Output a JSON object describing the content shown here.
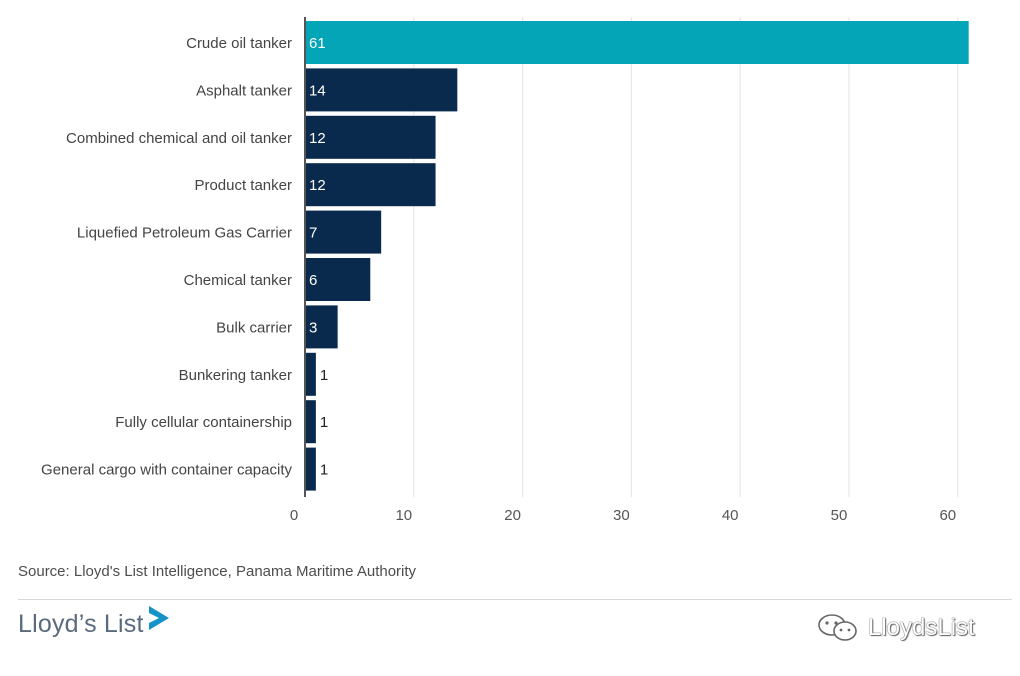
{
  "chart_data": {
    "type": "bar",
    "orientation": "horizontal",
    "categories": [
      "Crude oil tanker",
      "Asphalt tanker",
      "Combined chemical and oil tanker",
      "Product tanker",
      "Liquefied Petroleum Gas Carrier",
      "Chemical tanker",
      "Bulk carrier",
      "Bunkering tanker",
      "Fully cellular containership",
      "General cargo with container capacity"
    ],
    "values": [
      61,
      14,
      12,
      12,
      7,
      6,
      3,
      1,
      1,
      1
    ],
    "highlight_index": 0,
    "xlim": [
      0,
      60
    ],
    "xticks": [
      0,
      10,
      20,
      30,
      40,
      50,
      60
    ],
    "grid": true,
    "colors": {
      "bar": "#0a2a4d",
      "highlight": "#05a5b8",
      "grid": "#e3e3e3",
      "axis": "#555555"
    }
  },
  "source": "Source: Lloyd's List Intelligence, Panama Maritime Authority",
  "brand": {
    "name": "Lloyd’s List",
    "logo_icon": "play-chevron-icon"
  },
  "watermark": {
    "text": "LloydsList",
    "icon": "wechat-icon"
  }
}
